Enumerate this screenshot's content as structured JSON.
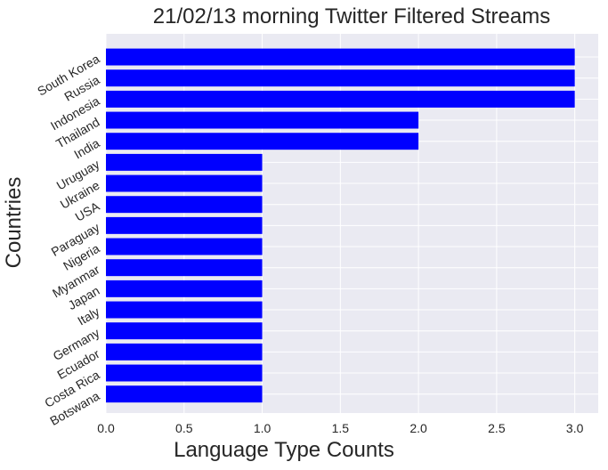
{
  "chart_data": {
    "type": "bar",
    "orientation": "horizontal",
    "title": "21/02/13 morning Twitter Filtered Streams",
    "xlabel": "Language Type Counts",
    "ylabel": "Countries",
    "categories": [
      "South Korea",
      "Russia",
      "Indonesia",
      "Thailand",
      "India",
      "Uruguay",
      "Ukraine",
      "USA",
      "Paraguay",
      "Nigeria",
      "Myanmar",
      "Japan",
      "Italy",
      "Germany",
      "Ecuador",
      "Costa Rica",
      "Botswana"
    ],
    "values": [
      3,
      3,
      3,
      2,
      2,
      1,
      1,
      1,
      1,
      1,
      1,
      1,
      1,
      1,
      1,
      1,
      1
    ],
    "xlim": [
      0,
      3.15
    ],
    "xticks": [
      0.0,
      0.5,
      1.0,
      1.5,
      2.0,
      2.5,
      3.0
    ],
    "xtick_labels": [
      "0.0",
      "0.5",
      "1.0",
      "1.5",
      "2.0",
      "2.5",
      "3.0"
    ],
    "bar_color": "#0000ff",
    "background_color": "#eaeaf2",
    "grid": true,
    "grid_color": "#ffffff"
  }
}
